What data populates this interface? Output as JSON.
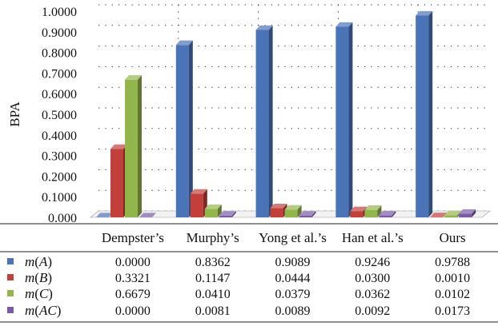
{
  "chart_data": {
    "type": "bar",
    "ylabel": "BPA",
    "ylim": [
      0,
      1
    ],
    "yticks": [
      "0.000",
      "0.1000",
      "0.2000",
      "0.3000",
      "0.4000",
      "0.5000",
      "0.6000",
      "0.7000",
      "0.8000",
      "0.9000",
      "1.0000"
    ],
    "grid": "dotted",
    "style": "3d-bars",
    "categories": [
      "Dempster’s",
      "Murphy’s",
      "Yong et al.’s",
      "Han et al.’s",
      "Ours"
    ],
    "series": [
      {
        "name": "m(A)",
        "color": "#4a73b8",
        "values": [
          0.0,
          0.8362,
          0.9089,
          0.9246,
          0.9788
        ],
        "labels": [
          "0.0000",
          "0.8362",
          "0.9089",
          "0.9246",
          "0.9788"
        ]
      },
      {
        "name": "m(B)",
        "color": "#c33f3c",
        "values": [
          0.3321,
          0.1147,
          0.0444,
          0.03,
          0.001
        ],
        "labels": [
          "0.3321",
          "0.1147",
          "0.0444",
          "0.0300",
          "0.0010"
        ]
      },
      {
        "name": "m(C)",
        "color": "#93b64c",
        "values": [
          0.6679,
          0.041,
          0.0379,
          0.0362,
          0.0102
        ],
        "labels": [
          "0.6679",
          "0.0410",
          "0.0379",
          "0.0362",
          "0.0102"
        ]
      },
      {
        "name": "m(AC)",
        "color": "#7b5aa6",
        "values": [
          0.0,
          0.0081,
          0.0089,
          0.0092,
          0.0173
        ],
        "labels": [
          "0.0000",
          "0.0081",
          "0.0089",
          "0.0092",
          "0.0173"
        ]
      }
    ]
  }
}
